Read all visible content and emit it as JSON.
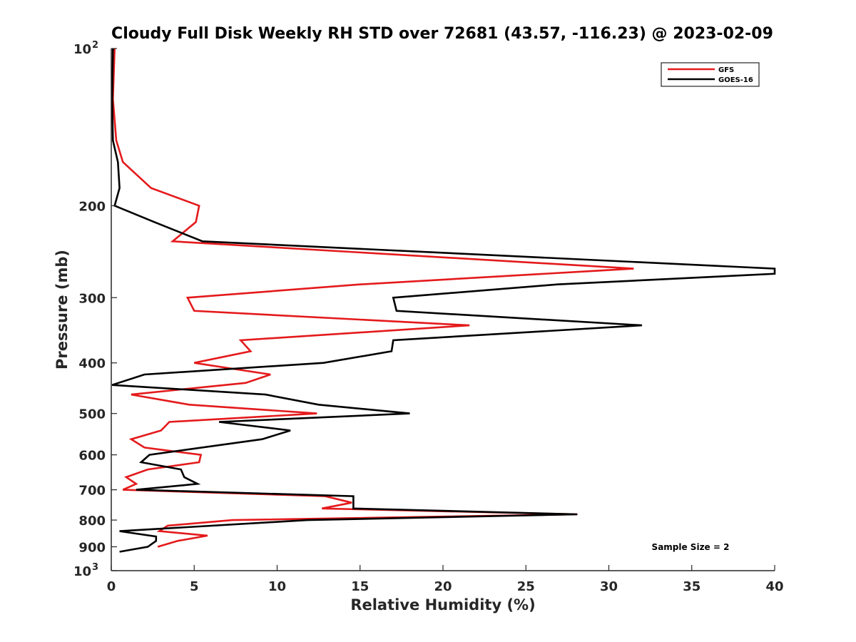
{
  "chart_data": {
    "type": "line",
    "title": "Cloudy Full Disk Weekly RH STD over 72681 (43.57, -116.23) @ 2023-02-09",
    "xlabel": "Relative Humidity (%)",
    "ylabel": "Pressure (mb)",
    "xlim": [
      0,
      40
    ],
    "ylim": [
      100,
      1000
    ],
    "y_scale": "log",
    "y_reversed": true,
    "grid": false,
    "legend_position": "top-right",
    "x_ticks": [
      0,
      5,
      10,
      15,
      20,
      25,
      30,
      35,
      40
    ],
    "x_tick_labels": [
      "0",
      "5",
      "10",
      "15",
      "20",
      "25",
      "30",
      "35",
      "40"
    ],
    "y_ticks": [
      100,
      200,
      300,
      400,
      500,
      600,
      700,
      800,
      900,
      1000
    ],
    "y_tick_labels": [
      {
        "base": "10",
        "exp": "2"
      },
      {
        "base": "200",
        "exp": ""
      },
      {
        "base": "300",
        "exp": ""
      },
      {
        "base": "400",
        "exp": ""
      },
      {
        "base": "500",
        "exp": ""
      },
      {
        "base": "600",
        "exp": ""
      },
      {
        "base": "700",
        "exp": ""
      },
      {
        "base": "800",
        "exp": ""
      },
      {
        "base": "900",
        "exp": ""
      },
      {
        "base": "10",
        "exp": "3"
      }
    ],
    "series": [
      {
        "name": "GFS",
        "color": "#e41a1c",
        "points": [
          [
            0.2,
            100
          ],
          [
            0.1,
            125
          ],
          [
            0.3,
            150
          ],
          [
            0.7,
            165
          ],
          [
            2.4,
            185
          ],
          [
            5.3,
            200
          ],
          [
            5.1,
            215
          ],
          [
            3.7,
            234
          ],
          [
            31.5,
            264
          ],
          [
            15.0,
            283
          ],
          [
            4.6,
            300
          ],
          [
            5.0,
            318
          ],
          [
            21.6,
            339
          ],
          [
            7.8,
            362
          ],
          [
            8.4,
            380
          ],
          [
            5.0,
            400
          ],
          [
            9.6,
            421
          ],
          [
            8.1,
            437
          ],
          [
            1.2,
            460
          ],
          [
            4.7,
            481
          ],
          [
            12.4,
            500
          ],
          [
            3.5,
            519
          ],
          [
            3.0,
            539
          ],
          [
            1.2,
            560
          ],
          [
            2.0,
            581
          ],
          [
            5.4,
            600
          ],
          [
            5.3,
            620
          ],
          [
            2.2,
            640
          ],
          [
            0.9,
            662
          ],
          [
            1.5,
            682
          ],
          [
            0.7,
            700
          ],
          [
            12.9,
            720
          ],
          [
            14.5,
            741
          ],
          [
            12.7,
            760
          ],
          [
            28.1,
            780
          ],
          [
            7.3,
            800
          ],
          [
            3.4,
            820
          ],
          [
            2.9,
            840
          ],
          [
            5.8,
            857
          ],
          [
            4.0,
            877
          ],
          [
            2.8,
            900
          ]
        ]
      },
      {
        "name": "GOES-16",
        "color": "#000000",
        "points": [
          [
            0.1,
            100
          ],
          [
            0.05,
            125
          ],
          [
            0.1,
            150
          ],
          [
            0.4,
            165
          ],
          [
            0.5,
            185
          ],
          [
            0.2,
            200
          ],
          [
            2.6,
            215
          ],
          [
            5.5,
            234
          ],
          [
            40.0,
            264
          ],
          [
            40.0,
            270
          ],
          [
            26.9,
            283
          ],
          [
            17.0,
            300
          ],
          [
            17.2,
            318
          ],
          [
            32.0,
            339
          ],
          [
            17.0,
            362
          ],
          [
            16.9,
            380
          ],
          [
            12.8,
            400
          ],
          [
            2.0,
            421
          ],
          [
            0.05,
            441
          ],
          [
            9.3,
            460
          ],
          [
            12.5,
            481
          ],
          [
            18.0,
            500
          ],
          [
            6.5,
            519
          ],
          [
            10.8,
            539
          ],
          [
            9.1,
            560
          ],
          [
            2.3,
            600
          ],
          [
            1.8,
            620
          ],
          [
            4.2,
            640
          ],
          [
            4.4,
            662
          ],
          [
            5.2,
            682
          ],
          [
            1.5,
            700
          ],
          [
            14.6,
            720
          ],
          [
            14.6,
            741
          ],
          [
            14.6,
            760
          ],
          [
            28.1,
            780
          ],
          [
            11.8,
            800
          ],
          [
            0.5,
            840
          ],
          [
            2.7,
            860
          ],
          [
            2.7,
            877
          ],
          [
            2.2,
            900
          ],
          [
            0.5,
            920
          ]
        ]
      }
    ],
    "annotations": [
      "Sample Size = 2"
    ]
  }
}
